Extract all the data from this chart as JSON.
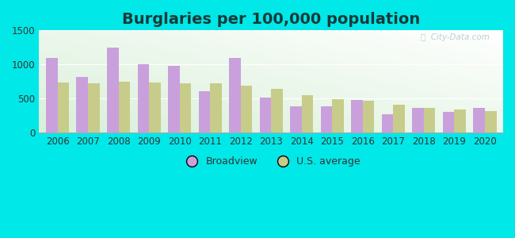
{
  "title": "Burglaries per 100,000 population",
  "years": [
    2006,
    2007,
    2008,
    2009,
    2010,
    2011,
    2012,
    2013,
    2014,
    2015,
    2016,
    2017,
    2018,
    2019,
    2020
  ],
  "broadview": [
    1100,
    820,
    1250,
    1005,
    975,
    610,
    1100,
    510,
    390,
    390,
    475,
    265,
    365,
    300,
    365
  ],
  "us_average": [
    740,
    730,
    750,
    740,
    720,
    730,
    695,
    640,
    545,
    490,
    465,
    415,
    365,
    340,
    315
  ],
  "broadview_color": "#c9a0dc",
  "us_avg_color": "#c8cc8a",
  "ylim": [
    0,
    1500
  ],
  "yticks": [
    0,
    500,
    1000,
    1500
  ],
  "bar_width": 0.38,
  "background_outer": "#00e8e8",
  "legend_broadview": "Broadview",
  "legend_us": "U.S. average",
  "title_fontsize": 14,
  "tick_fontsize": 8.5,
  "title_color": "#1a3a3a",
  "tick_color": "#333333",
  "watermark_color": "#b0c8cc"
}
